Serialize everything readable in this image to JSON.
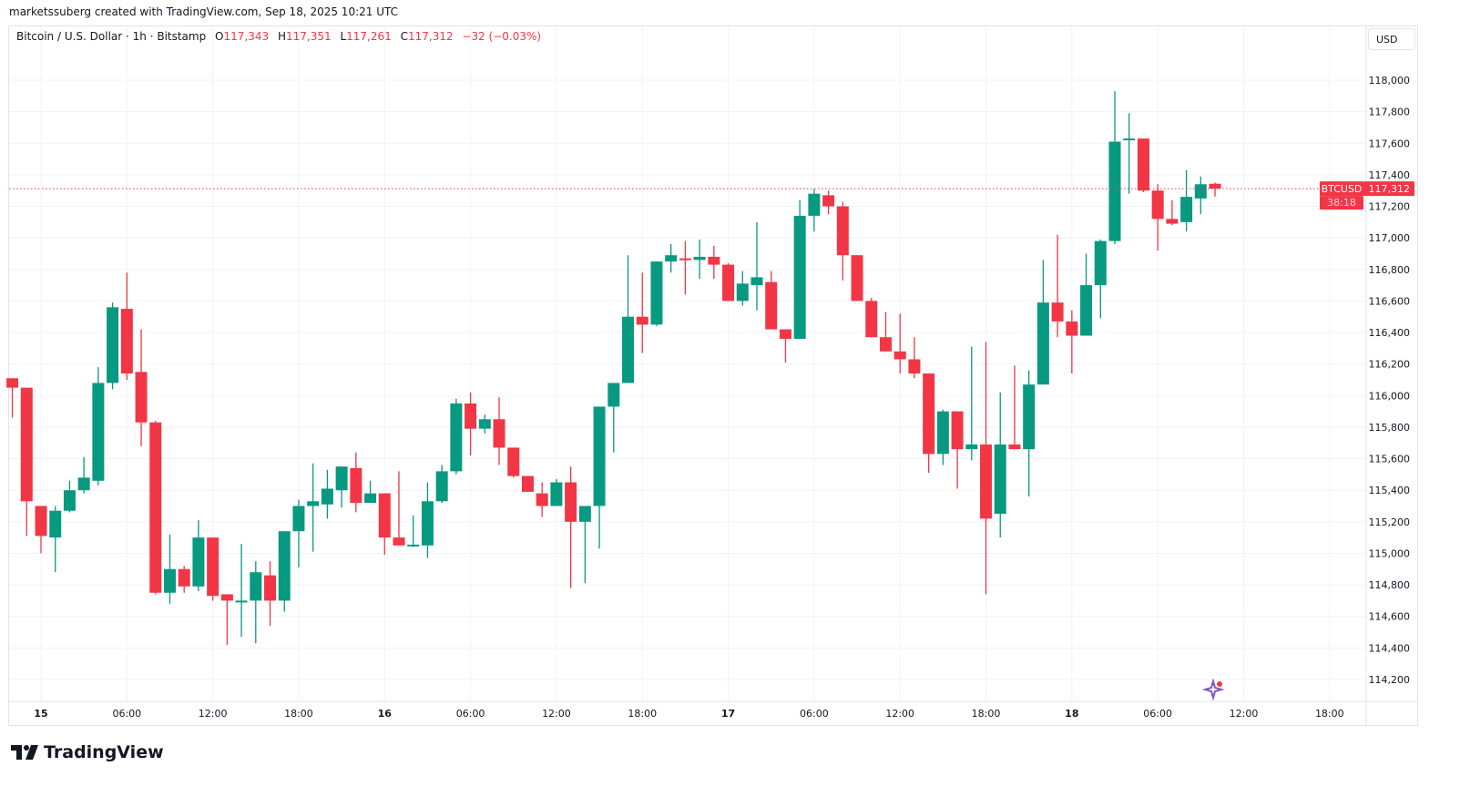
{
  "credit": "marketssuberg created with TradingView.com, Sep 18, 2025 10:21 UTC",
  "legend": {
    "symbol": "Bitcoin / U.S. Dollar · 1h · Bitstamp",
    "o_label": "O",
    "o": "117,343",
    "h_label": "H",
    "h": "117,351",
    "l_label": "L",
    "l": "117,261",
    "c_label": "C",
    "c": "117,312",
    "change": "−32 (−0.03%)"
  },
  "currency": "USD",
  "last_price": {
    "ticker": "BTCUSD",
    "price": "117,312",
    "countdown": "38:18",
    "value": 117312
  },
  "logo_text": "TradingView",
  "colors": {
    "up": "#089981",
    "down": "#f23645",
    "grid": "#f0f3fa",
    "text": "#131722"
  },
  "chart_data": {
    "type": "candlestick",
    "title": "Bitcoin / U.S. Dollar · 1h · Bitstamp",
    "xlabel": "",
    "ylabel": "USD",
    "ylim": [
      114100,
      118200
    ],
    "grid": true,
    "y_ticks": [
      "118,000",
      "117,800",
      "117,600",
      "117,400",
      "117,200",
      "117,000",
      "116,800",
      "116,600",
      "116,400",
      "116,200",
      "116,000",
      "115,800",
      "115,600",
      "115,400",
      "115,200",
      "115,000",
      "114,800",
      "114,600",
      "114,400",
      "114,200"
    ],
    "y_tick_values": [
      118000,
      117800,
      117600,
      117400,
      117200,
      117000,
      116800,
      116600,
      116400,
      116200,
      116000,
      115800,
      115600,
      115400,
      115200,
      115000,
      114800,
      114600,
      114400,
      114200
    ],
    "x_ticks": [
      "15",
      "06:00",
      "12:00",
      "18:00",
      "16",
      "06:00",
      "12:00",
      "18:00",
      "17",
      "06:00",
      "12:00",
      "18:00",
      "18",
      "06:00",
      "12:00",
      "18:00"
    ],
    "x_tick_hours": [
      0,
      6,
      12,
      18,
      24,
      30,
      36,
      42,
      48,
      54,
      60,
      66,
      72,
      78,
      84,
      90
    ],
    "first_candle_hour": -2,
    "candles": [
      [
        116110,
        116110,
        115860,
        116050
      ],
      [
        116050,
        116050,
        115110,
        115330
      ],
      [
        115300,
        115300,
        115000,
        115110
      ],
      [
        115100,
        115300,
        114880,
        115270
      ],
      [
        115270,
        115460,
        115260,
        115400
      ],
      [
        115400,
        115610,
        115380,
        115480
      ],
      [
        115460,
        116180,
        115430,
        116080
      ],
      [
        116080,
        116590,
        116040,
        116560
      ],
      [
        116550,
        116780,
        116100,
        116140
      ],
      [
        116150,
        116420,
        115680,
        115830
      ],
      [
        115830,
        115840,
        114740,
        114750
      ],
      [
        114750,
        115120,
        114680,
        114900
      ],
      [
        114900,
        114920,
        114750,
        114790
      ],
      [
        114790,
        115210,
        114760,
        115100
      ],
      [
        115100,
        115100,
        114700,
        114730
      ],
      [
        114740,
        114740,
        114420,
        114700
      ],
      [
        114690,
        115060,
        114470,
        114700
      ],
      [
        114700,
        114950,
        114430,
        114880
      ],
      [
        114860,
        114950,
        114540,
        114700
      ],
      [
        114700,
        115140,
        114630,
        115140
      ],
      [
        115140,
        115340,
        114910,
        115300
      ],
      [
        115300,
        115570,
        115010,
        115330
      ],
      [
        115310,
        115530,
        115220,
        115410
      ],
      [
        115400,
        115550,
        115290,
        115550
      ],
      [
        115540,
        115640,
        115260,
        115320
      ],
      [
        115320,
        115460,
        115320,
        115380
      ],
      [
        115380,
        115380,
        114990,
        115100
      ],
      [
        115100,
        115520,
        115050,
        115050
      ],
      [
        115050,
        115240,
        115040,
        115055
      ],
      [
        115050,
        115450,
        114970,
        115330
      ],
      [
        115330,
        115560,
        115320,
        115520
      ],
      [
        115520,
        115980,
        115500,
        115950
      ],
      [
        115950,
        116020,
        115620,
        115790
      ],
      [
        115790,
        115880,
        115760,
        115850
      ],
      [
        115850,
        115990,
        115560,
        115670
      ],
      [
        115670,
        115670,
        115480,
        115490
      ],
      [
        115490,
        115490,
        115390,
        115390
      ],
      [
        115380,
        115450,
        115230,
        115300
      ],
      [
        115300,
        115470,
        115300,
        115450
      ],
      [
        115450,
        115550,
        114780,
        115200
      ],
      [
        115200,
        115300,
        114810,
        115300
      ],
      [
        115300,
        115930,
        115030,
        115930
      ],
      [
        115930,
        116080,
        115640,
        116080
      ],
      [
        116080,
        116890,
        116080,
        116500
      ],
      [
        116500,
        116780,
        116270,
        116450
      ],
      [
        116450,
        116850,
        116440,
        116850
      ],
      [
        116850,
        116960,
        116780,
        116890
      ],
      [
        116870,
        116980,
        116640,
        116860
      ],
      [
        116860,
        116990,
        116740,
        116880
      ],
      [
        116880,
        116950,
        116740,
        116830
      ],
      [
        116830,
        116840,
        116600,
        116600
      ],
      [
        116600,
        116790,
        116570,
        116710
      ],
      [
        116700,
        117100,
        116540,
        116750
      ],
      [
        116720,
        116790,
        116420,
        116420
      ],
      [
        116420,
        116420,
        116210,
        116360
      ],
      [
        116360,
        117240,
        116360,
        117140
      ],
      [
        117140,
        117310,
        117040,
        117280
      ],
      [
        117270,
        117300,
        117150,
        117200
      ],
      [
        117200,
        117230,
        116730,
        116890
      ],
      [
        116890,
        116890,
        116600,
        116600
      ],
      [
        116600,
        116620,
        116370,
        116370
      ],
      [
        116370,
        116530,
        116280,
        116280
      ],
      [
        116280,
        116520,
        116140,
        116230
      ],
      [
        116230,
        116370,
        116110,
        116140
      ],
      [
        116140,
        116140,
        115510,
        115630
      ],
      [
        115630,
        115910,
        115560,
        115900
      ],
      [
        115900,
        115900,
        115410,
        115660
      ],
      [
        115660,
        116310,
        115590,
        115690
      ],
      [
        115690,
        116340,
        114740,
        115220
      ],
      [
        115250,
        116020,
        115100,
        115690
      ],
      [
        115690,
        116190,
        115660,
        115660
      ],
      [
        115660,
        116160,
        115360,
        116070
      ],
      [
        116070,
        116860,
        116070,
        116590
      ],
      [
        116590,
        117020,
        116370,
        116470
      ],
      [
        116470,
        116540,
        116140,
        116380
      ],
      [
        116380,
        116900,
        116380,
        116700
      ],
      [
        116700,
        116990,
        116490,
        116980
      ],
      [
        116980,
        117930,
        116960,
        117610
      ],
      [
        117620,
        117790,
        117280,
        117630
      ],
      [
        117630,
        117630,
        117290,
        117300
      ],
      [
        117300,
        117340,
        116920,
        117120
      ],
      [
        117120,
        117240,
        117080,
        117090
      ],
      [
        117100,
        117430,
        117040,
        117260
      ],
      [
        117250,
        117390,
        117150,
        117340
      ],
      [
        117343,
        117351,
        117261,
        117312
      ]
    ]
  }
}
